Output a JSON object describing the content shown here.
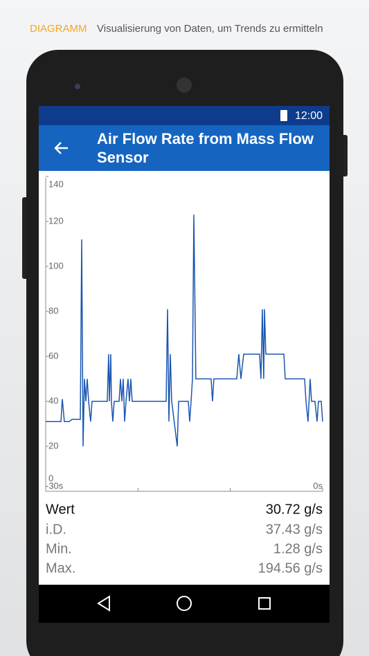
{
  "caption": {
    "label": "DIAGRAMM",
    "text": "Visualisierung von Daten, um Trends zu ermitteln"
  },
  "status_bar": {
    "time": "12:00"
  },
  "app_bar": {
    "title": "Air Flow Rate from Mass Flow Sensor"
  },
  "chart_data": {
    "type": "line",
    "x": [
      -30,
      -28.35,
      -28.2,
      -27.98,
      -27.45,
      -27.15,
      -26.25,
      -26.1,
      -25.95,
      -25.8,
      -25.65,
      -25.5,
      -25.35,
      -25.13,
      -24.98,
      -23.33,
      -23.18,
      -23.1,
      -22.95,
      -22.88,
      -22.73,
      -22.58,
      -22.05,
      -21.9,
      -21.75,
      -21.6,
      -21.45,
      -21.3,
      -21.08,
      -20.93,
      -20.78,
      -20.63,
      -16.95,
      -16.8,
      -16.65,
      -16.5,
      -16.35,
      -15.75,
      -15.6,
      -14.55,
      -14.4,
      -14.25,
      -14.1,
      -13.95,
      -13.73,
      -12.08,
      -11.93,
      -11.78,
      -9.3,
      -9.08,
      -8.85,
      -8.55,
      -6.83,
      -6.68,
      -6.53,
      -6.38,
      -6.3,
      -6.15,
      -4.2,
      -4.05,
      -1.95,
      -1.8,
      -1.58,
      -1.35,
      -1.2,
      -0.83,
      -0.6,
      -0.45,
      -0.15,
      0
    ],
    "series": [
      {
        "color": "#1a56b0",
        "values": [
          31,
          31,
          41,
          31,
          31,
          32,
          32,
          112,
          20,
          50,
          40,
          50,
          40,
          31,
          40,
          40,
          61,
          40,
          61,
          40,
          31,
          40,
          40,
          50,
          40,
          50,
          31,
          40,
          50,
          40,
          50,
          40,
          40,
          81,
          31,
          61,
          40,
          20,
          40,
          40,
          31,
          40,
          50,
          123,
          50,
          50,
          40,
          50,
          50,
          61,
          50,
          61,
          61,
          50,
          81,
          50,
          81,
          61,
          61,
          50,
          50,
          40,
          31,
          50,
          40,
          40,
          31,
          40,
          40,
          31
        ]
      }
    ],
    "xlim": [
      -30,
      0
    ],
    "xticks": [
      {
        "value": -30,
        "label": "-30s"
      },
      {
        "value": 0,
        "label": "0s"
      }
    ],
    "xminorticks": [
      -20,
      -10
    ],
    "ylim": [
      0,
      140
    ],
    "yticks": [
      0,
      20,
      40,
      60,
      80,
      100,
      120,
      140
    ]
  },
  "stats": {
    "rows": [
      {
        "label": "Wert",
        "value": "30.72 g/s"
      },
      {
        "label": "i.D.",
        "value": "37.43 g/s"
      },
      {
        "label": "Min.",
        "value": "1.28 g/s"
      },
      {
        "label": "Max.",
        "value": "194.56 g/s"
      }
    ]
  }
}
